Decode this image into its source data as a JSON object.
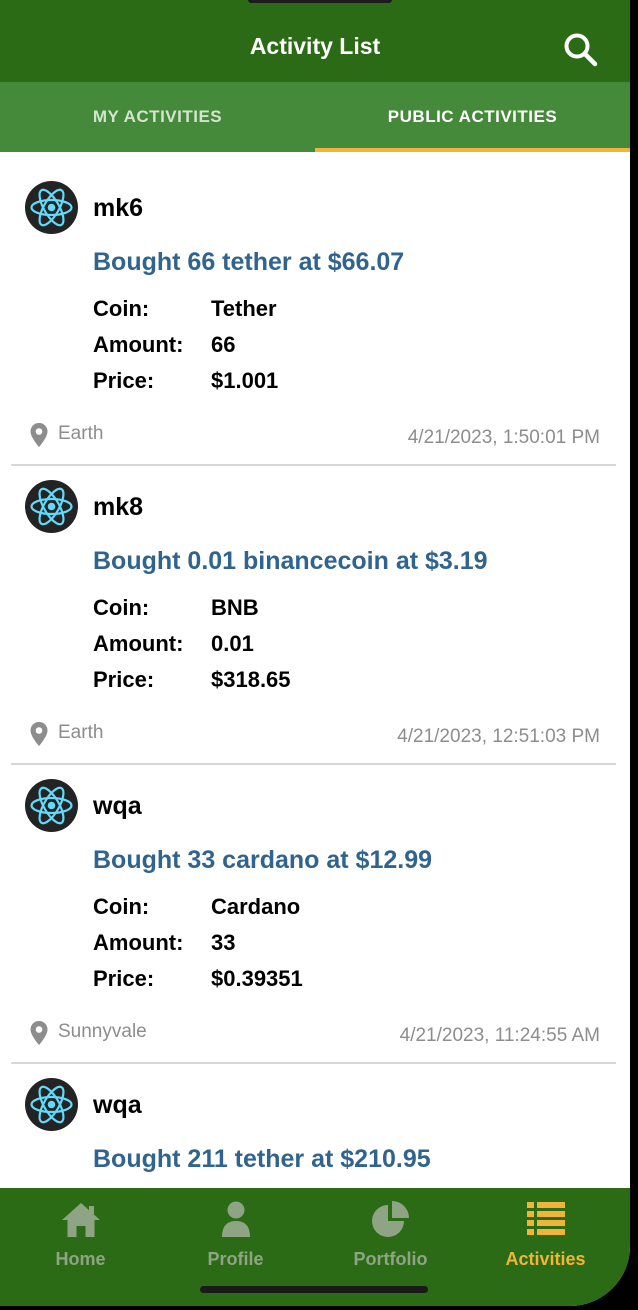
{
  "header": {
    "title": "Activity List",
    "search_icon": "search-icon"
  },
  "tabs": [
    {
      "label": "MY ACTIVITIES",
      "selected": false
    },
    {
      "label": "PUBLIC ACTIVITIES",
      "selected": true
    }
  ],
  "labels": {
    "coin": "Coin:",
    "amount": "Amount:",
    "price": "Price:"
  },
  "activities": [
    {
      "user": "mk6",
      "headline": "Bought 66 tether at $66.07",
      "coin": "Tether",
      "amount": "66",
      "price": "$1.001",
      "location": "Earth",
      "time": "4/21/2023, 1:50:01 PM"
    },
    {
      "user": "mk8",
      "headline": "Bought 0.01 binancecoin at $3.19",
      "coin": "BNB",
      "amount": "0.01",
      "price": "$318.65",
      "location": "Earth",
      "time": "4/21/2023, 12:51:03 PM"
    },
    {
      "user": "wqa",
      "headline": "Bought 33 cardano at $12.99",
      "coin": "Cardano",
      "amount": "33",
      "price": "$0.39351",
      "location": "Sunnyvale",
      "time": "4/21/2023, 11:24:55 AM"
    },
    {
      "user": "wqa",
      "headline": "Bought 211 tether at $210.95",
      "coin": "",
      "amount": "",
      "price": "",
      "location": "",
      "time": ""
    }
  ],
  "nav": [
    {
      "label": "Home",
      "icon": "home-icon",
      "active": false
    },
    {
      "label": "Profile",
      "icon": "profile-icon",
      "active": false
    },
    {
      "label": "Portfolio",
      "icon": "pie-chart-icon",
      "active": false
    },
    {
      "label": "Activities",
      "icon": "list-icon",
      "active": true
    }
  ],
  "colors": {
    "appbar": "#2c6b15",
    "tabbar": "#45893a",
    "accent": "#f0b43a",
    "headline": "#30648f"
  }
}
